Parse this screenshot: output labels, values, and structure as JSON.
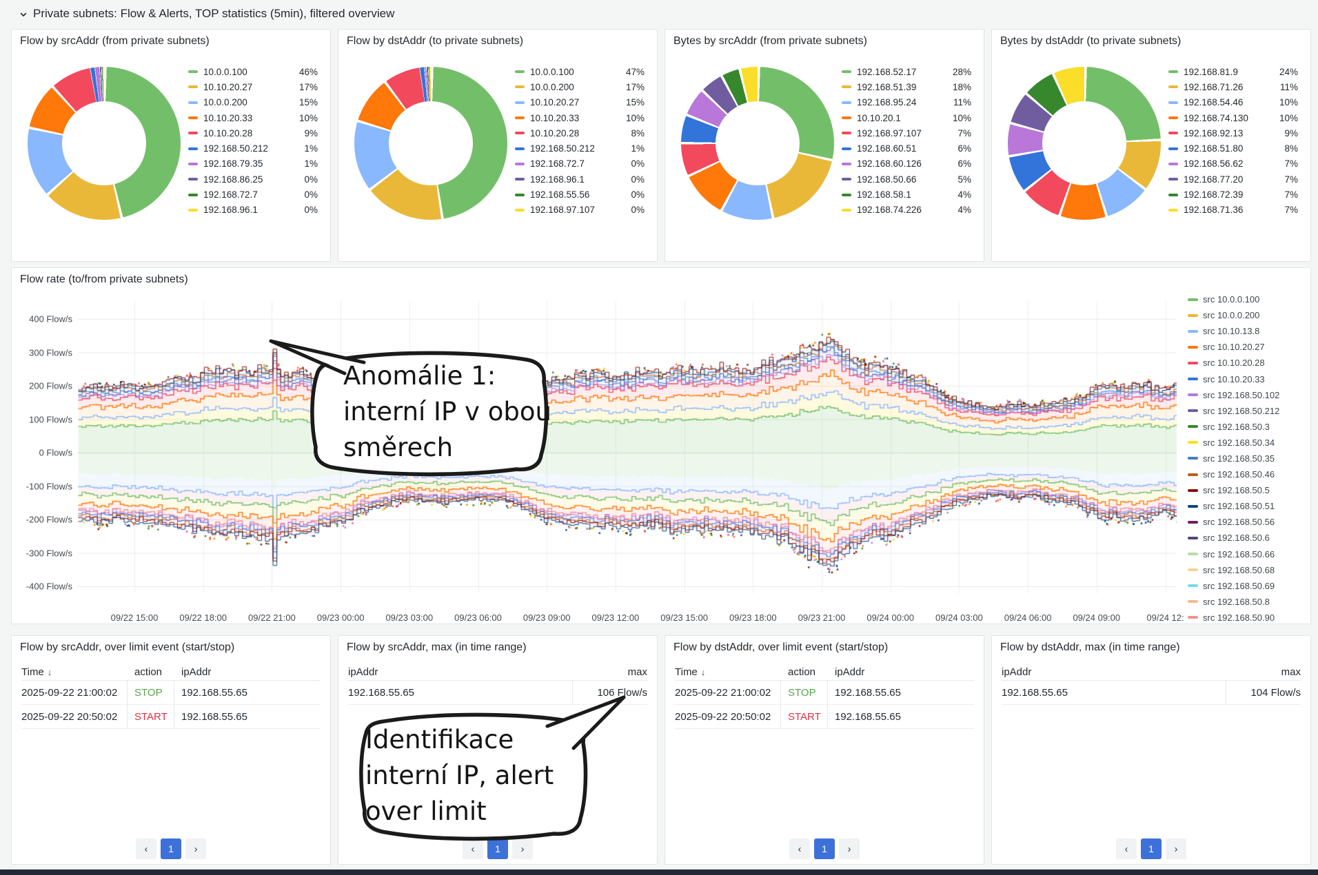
{
  "header": {
    "title": "Private subnets: Flow & Alerts, TOP statistics (5min), filtered overview"
  },
  "chart_data": [
    {
      "type": "pie",
      "title": "Flow by srcAddr (from private subnets)",
      "legend_position": "right",
      "labels": [
        "10.0.0.100",
        "10.10.20.27",
        "10.0.0.200",
        "10.10.20.33",
        "10.10.20.28",
        "192.168.50.212",
        "192.168.79.35",
        "192.168.86.25",
        "192.168.72.7",
        "192.168.96.1"
      ],
      "values": [
        46,
        17,
        15,
        10,
        9,
        1,
        1,
        0.4,
        0.3,
        0.3
      ],
      "display_pcts": [
        "46%",
        "17%",
        "15%",
        "10%",
        "9%",
        "1%",
        "1%",
        "0%",
        "0%",
        "0%"
      ],
      "colors": [
        "#73BF69",
        "#EAB839",
        "#8AB8FF",
        "#FF780A",
        "#F2495C",
        "#3274D9",
        "#B877D9",
        "#705DA0",
        "#37872D",
        "#FADE2A"
      ]
    },
    {
      "type": "pie",
      "title": "Flow by dstAddr (to private subnets)",
      "legend_position": "right",
      "labels": [
        "10.0.0.100",
        "10.0.0.200",
        "10.10.20.27",
        "10.10.20.33",
        "10.10.20.28",
        "192.168.50.212",
        "192.168.72.7",
        "192.168.96.1",
        "192.168.55.56",
        "192.168.97.107"
      ],
      "values": [
        47,
        17,
        15,
        10,
        8,
        1,
        0.4,
        0.4,
        0.3,
        0.3
      ],
      "display_pcts": [
        "47%",
        "17%",
        "15%",
        "10%",
        "8%",
        "1%",
        "0%",
        "0%",
        "0%",
        "0%"
      ],
      "colors": [
        "#73BF69",
        "#EAB839",
        "#8AB8FF",
        "#FF780A",
        "#F2495C",
        "#3274D9",
        "#B877D9",
        "#705DA0",
        "#37872D",
        "#FADE2A"
      ]
    },
    {
      "type": "pie",
      "title": "Bytes by srcAddr (from private subnets)",
      "legend_position": "right",
      "labels": [
        "192.168.52.17",
        "192.168.51.39",
        "192.168.95.24",
        "10.10.20.1",
        "192.168.97.107",
        "192.168.60.51",
        "192.168.60.126",
        "192.168.50.66",
        "192.168.58.1",
        "192.168.74.226"
      ],
      "values": [
        28,
        18,
        11,
        10,
        7,
        6,
        6,
        5,
        4,
        4
      ],
      "display_pcts": [
        "28%",
        "18%",
        "11%",
        "10%",
        "7%",
        "6%",
        "6%",
        "5%",
        "4%",
        "4%"
      ],
      "colors": [
        "#73BF69",
        "#EAB839",
        "#8AB8FF",
        "#FF780A",
        "#F2495C",
        "#3274D9",
        "#B877D9",
        "#705DA0",
        "#37872D",
        "#FADE2A"
      ]
    },
    {
      "type": "pie",
      "title": "Bytes by dstAddr (to private subnets)",
      "legend_position": "right",
      "labels": [
        "192.168.81.9",
        "192.168.71.26",
        "192.168.54.46",
        "192.168.74.130",
        "192.168.92.13",
        "192.168.51.80",
        "192.168.56.62",
        "192.168.77.20",
        "192.168.72.39",
        "192.168.71.36"
      ],
      "values": [
        24,
        11,
        10,
        10,
        9,
        8,
        7,
        7,
        7,
        7
      ],
      "display_pcts": [
        "24%",
        "11%",
        "10%",
        "10%",
        "9%",
        "8%",
        "7%",
        "7%",
        "7%",
        "7%"
      ],
      "colors": [
        "#73BF69",
        "#EAB839",
        "#8AB8FF",
        "#FF780A",
        "#F2495C",
        "#3274D9",
        "#B877D9",
        "#705DA0",
        "#37872D",
        "#FADE2A"
      ]
    },
    {
      "type": "line",
      "title": "Flow rate (to/from private subnets)",
      "unit": "Flow/s",
      "stacked": true,
      "grid": true,
      "legend_position": "right",
      "ylim": [
        -450,
        480
      ],
      "y_ticks": [
        "400 Flow/s",
        "300 Flow/s",
        "200 Flow/s",
        "100 Flow/s",
        "0 Flow/s",
        "-100 Flow/s",
        "-200 Flow/s",
        "-300 Flow/s",
        "-400 Flow/s"
      ],
      "x_ticks": [
        "09/22 15:00",
        "09/22 18:00",
        "09/22 21:00",
        "09/23 00:00",
        "09/23 03:00",
        "09/23 06:00",
        "09/23 09:00",
        "09/23 12:00",
        "09/23 15:00",
        "09/23 18:00",
        "09/23 21:00",
        "09/24 00:00",
        "09/24 03:00",
        "09/24 06:00",
        "09/24 09:00",
        "09/24 12:"
      ],
      "series": [
        {
          "label": "src 10.0.0.100",
          "color": "#73BF69"
        },
        {
          "label": "src 10.0.0.200",
          "color": "#EAB839"
        },
        {
          "label": "src 10.10.13.8",
          "color": "#8AB8FF"
        },
        {
          "label": "src 10.10.20.27",
          "color": "#FF780A"
        },
        {
          "label": "src 10.10.20.28",
          "color": "#F2495C"
        },
        {
          "label": "src 10.10.20.33",
          "color": "#3274D9"
        },
        {
          "label": "src 192.168.50.102",
          "color": "#B877D9"
        },
        {
          "label": "src 192.168.50.212",
          "color": "#705DA0"
        },
        {
          "label": "src 192.168.50.3",
          "color": "#37872D"
        },
        {
          "label": "src 192.168.50.34",
          "color": "#FADE2A"
        },
        {
          "label": "src 192.168.50.35",
          "color": "#447EBC"
        },
        {
          "label": "src 192.168.50.46",
          "color": "#C15C17"
        },
        {
          "label": "src 192.168.50.5",
          "color": "#890F02"
        },
        {
          "label": "src 192.168.50.51",
          "color": "#0A437C"
        },
        {
          "label": "src 192.168.50.56",
          "color": "#6D1F62"
        },
        {
          "label": "src 192.168.50.6",
          "color": "#584477"
        },
        {
          "label": "src 192.168.50.66",
          "color": "#B7DBAB"
        },
        {
          "label": "src 192.168.50.68",
          "color": "#F4D598"
        },
        {
          "label": "src 192.168.50.69",
          "color": "#70DBED"
        },
        {
          "label": "src 192.168.50.8",
          "color": "#F9BA8F"
        },
        {
          "label": "src 192.168.50.90",
          "color": "#F29191"
        }
      ],
      "envelope_pos": [
        [
          -2.5,
          192
        ],
        [
          0,
          200
        ],
        [
          3,
          236
        ],
        [
          5.9,
          250
        ],
        [
          6,
          372
        ],
        [
          6.1,
          252
        ],
        [
          7.5,
          232
        ],
        [
          9,
          206
        ],
        [
          10.5,
          176
        ],
        [
          12,
          164
        ],
        [
          13.5,
          170
        ],
        [
          15,
          162
        ],
        [
          16.5,
          178
        ],
        [
          18,
          214
        ],
        [
          19.5,
          230
        ],
        [
          21,
          242
        ],
        [
          22.5,
          236
        ],
        [
          24,
          247
        ],
        [
          25.5,
          252
        ],
        [
          27,
          260
        ],
        [
          28.5,
          276
        ],
        [
          30,
          332
        ],
        [
          30.4,
          348
        ],
        [
          31,
          298
        ],
        [
          33,
          246
        ],
        [
          34.5,
          206
        ],
        [
          36,
          156
        ],
        [
          37.5,
          140
        ],
        [
          39,
          138
        ],
        [
          40.5,
          156
        ],
        [
          42,
          196
        ],
        [
          43.5,
          202
        ],
        [
          45,
          190
        ],
        [
          45.6,
          202
        ]
      ],
      "envelope_neg": [
        [
          -2.5,
          198
        ],
        [
          0,
          206
        ],
        [
          3,
          240
        ],
        [
          5.9,
          256
        ],
        [
          6,
          398
        ],
        [
          6.1,
          260
        ],
        [
          7.5,
          238
        ],
        [
          9,
          200
        ],
        [
          10.5,
          166
        ],
        [
          12,
          142
        ],
        [
          13.5,
          146
        ],
        [
          15,
          140
        ],
        [
          16.5,
          156
        ],
        [
          18,
          200
        ],
        [
          19.5,
          214
        ],
        [
          21,
          226
        ],
        [
          22.5,
          220
        ],
        [
          24,
          230
        ],
        [
          25.5,
          236
        ],
        [
          27,
          246
        ],
        [
          28.5,
          262
        ],
        [
          30,
          330
        ],
        [
          30.4,
          344
        ],
        [
          31,
          288
        ],
        [
          33,
          236
        ],
        [
          34.5,
          196
        ],
        [
          36,
          150
        ],
        [
          37.5,
          133
        ],
        [
          39,
          130
        ],
        [
          40.5,
          148
        ],
        [
          42,
          190
        ],
        [
          43.5,
          196
        ],
        [
          45,
          184
        ],
        [
          45.6,
          194
        ]
      ],
      "bands_pos": [
        {
          "f": 0.4,
          "line": "#73BF69",
          "fill": "rgba(115,191,105,0.16)"
        },
        {
          "f": 0.53,
          "line": "#8AB8FF",
          "fill": "rgba(250,222,42,0.16)"
        },
        {
          "f": 0.69,
          "line": "#FF780A",
          "fill": "rgba(255,170,80,0.13)"
        },
        {
          "f": 0.82,
          "line": "#F2495C",
          "fill": "rgba(242,73,92,0.10)"
        },
        {
          "f": 1.0,
          "line": null,
          "fill": "rgba(138,184,255,0.14)"
        }
      ],
      "cluster_pos": [
        {
          "f": 0.855,
          "line": "#B877D9"
        },
        {
          "f": 0.885,
          "line": "#705DA0"
        },
        {
          "f": 0.915,
          "line": "#3274D9"
        },
        {
          "f": 0.945,
          "line": "#C15C17"
        },
        {
          "f": 0.975,
          "line": "#0A437C"
        },
        {
          "f": 1.0,
          "line": "#890F02"
        }
      ],
      "bands_neg": [
        {
          "f": 0.32,
          "line": null,
          "fill": "rgba(115,191,105,0.13)"
        },
        {
          "f": 0.5,
          "line": "#8AB8FF",
          "fill": "rgba(138,184,255,0.10)"
        },
        {
          "f": 0.62,
          "line": "#73BF69",
          "fill": "rgba(242,145,145,0.12)"
        },
        {
          "f": 0.76,
          "line": "#FF780A",
          "fill": "rgba(250,222,42,0.10)"
        },
        {
          "f": 0.86,
          "line": "#F29191",
          "fill": "rgba(242,73,92,0.08)"
        },
        {
          "f": 1.0,
          "line": null,
          "fill": "rgba(184,119,217,0.10)"
        }
      ],
      "cluster_neg": [
        {
          "f": 0.88,
          "line": "#B877D9"
        },
        {
          "f": 0.91,
          "line": "#3274D9"
        },
        {
          "f": 0.94,
          "line": "#C15C17"
        },
        {
          "f": 0.97,
          "line": "#890F02"
        },
        {
          "f": 1.0,
          "line": "#0A437C"
        }
      ],
      "marker_colors": [
        "#F2CC0C",
        "#FF780A",
        "#F2495C",
        "#0A437C",
        "#37872D",
        "#B877D9",
        "#890F02"
      ]
    }
  ],
  "annotations": {
    "bubble1": {
      "lines": [
        "Anomálie 1:",
        "interní IP v obou",
        "směrech"
      ]
    },
    "bubble2": {
      "lines": [
        "Identifikace",
        "interní IP, alert",
        "over limit"
      ]
    }
  },
  "bottom_panels": [
    {
      "title": "Flow by srcAddr, over limit event (start/stop)",
      "kind": "events",
      "columns": [
        "Time",
        "action",
        "ipAddr"
      ],
      "sort_indicator": "↓",
      "rows": [
        {
          "time": "2025-09-22 21:00:02",
          "action": "STOP",
          "ip": "192.168.55.65"
        },
        {
          "time": "2025-09-22 20:50:02",
          "action": "START",
          "ip": "192.168.55.65"
        }
      ]
    },
    {
      "title": "Flow by srcAddr, max (in time range)",
      "kind": "max",
      "columns": [
        "ipAddr",
        "max"
      ],
      "rows": [
        {
          "ip": "192.168.55.65",
          "max": "106 Flow/s"
        }
      ]
    },
    {
      "title": "Flow by dstAddr, over limit event (start/stop)",
      "kind": "events",
      "columns": [
        "Time",
        "action",
        "ipAddr"
      ],
      "sort_indicator": "↓",
      "rows": [
        {
          "time": "2025-09-22 21:00:02",
          "action": "STOP",
          "ip": "192.168.55.65"
        },
        {
          "time": "2025-09-22 20:50:02",
          "action": "START",
          "ip": "192.168.55.65"
        }
      ]
    },
    {
      "title": "Flow by dstAddr, max (in time range)",
      "kind": "max",
      "columns": [
        "ipAddr",
        "max"
      ],
      "rows": [
        {
          "ip": "192.168.55.65",
          "max": "104 Flow/s"
        }
      ]
    }
  ],
  "action_colors": {
    "STOP": "#56A64B",
    "START": "#E02F44"
  },
  "pagination": {
    "prev": "‹",
    "page": "1",
    "next": "›"
  }
}
